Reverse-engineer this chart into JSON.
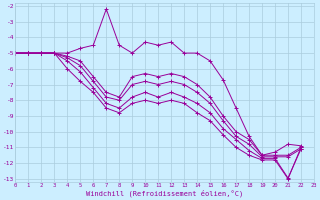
{
  "xlabel": "Windchill (Refroidissement éolien,°C)",
  "bg_color": "#cceeff",
  "grid_color": "#aaccdd",
  "line_color": "#990099",
  "xlim": [
    0,
    23
  ],
  "ylim": [
    -13,
    -2
  ],
  "yticks": [
    -13,
    -12,
    -11,
    -10,
    -9,
    -8,
    -7,
    -6,
    -5,
    -4,
    -3,
    -2
  ],
  "xticks": [
    0,
    1,
    2,
    3,
    4,
    5,
    6,
    7,
    8,
    9,
    10,
    11,
    12,
    13,
    14,
    15,
    16,
    17,
    18,
    19,
    20,
    21,
    22,
    23
  ],
  "series": [
    {
      "x": [
        0,
        1,
        2,
        3,
        4,
        5,
        6,
        7,
        8,
        9,
        10,
        11,
        12,
        13,
        14,
        15,
        16,
        17,
        18,
        19,
        20,
        21,
        22
      ],
      "y": [
        -5,
        -5,
        -5,
        -5,
        -5,
        -4.7,
        -4.5,
        -2.2,
        -4.5,
        -5.0,
        -4.3,
        -4.5,
        -4.3,
        -5.0,
        -5.0,
        -5.5,
        -6.7,
        -8.5,
        -10.3,
        -11.5,
        -11.3,
        -10.8,
        -10.9
      ]
    },
    {
      "x": [
        0,
        1,
        2,
        3,
        4,
        5,
        6,
        7,
        8,
        9,
        10,
        11,
        12,
        13,
        14,
        15,
        16,
        17,
        18,
        19,
        20,
        21,
        22
      ],
      "y": [
        -5,
        -5,
        -5,
        -5,
        -5.2,
        -5.5,
        -6.5,
        -7.5,
        -7.8,
        -6.5,
        -6.3,
        -6.5,
        -6.3,
        -6.5,
        -7.0,
        -7.8,
        -9.0,
        -10.0,
        -10.5,
        -11.5,
        -11.5,
        -11.5,
        -11.0
      ]
    },
    {
      "x": [
        0,
        1,
        2,
        3,
        4,
        5,
        6,
        7,
        8,
        9,
        10,
        11,
        12,
        13,
        14,
        15,
        16,
        17,
        18,
        19,
        20,
        21,
        22
      ],
      "y": [
        -5,
        -5,
        -5,
        -5,
        -5.3,
        -5.8,
        -6.8,
        -7.8,
        -8.0,
        -7.0,
        -6.8,
        -7.0,
        -6.8,
        -7.0,
        -7.5,
        -8.2,
        -9.3,
        -10.3,
        -10.8,
        -11.6,
        -11.6,
        -11.6,
        -11.1
      ]
    },
    {
      "x": [
        0,
        1,
        2,
        3,
        4,
        5,
        6,
        7,
        8,
        9,
        10,
        11,
        12,
        13,
        14,
        15,
        16,
        17,
        18,
        19,
        20,
        21,
        22
      ],
      "y": [
        -5,
        -5,
        -5,
        -5,
        -5.5,
        -6.2,
        -7.2,
        -8.2,
        -8.5,
        -7.8,
        -7.5,
        -7.8,
        -7.5,
        -7.8,
        -8.2,
        -8.8,
        -9.8,
        -10.5,
        -11.2,
        -11.7,
        -11.7,
        -12.95,
        -11.1
      ]
    },
    {
      "x": [
        0,
        1,
        2,
        3,
        4,
        5,
        6,
        7,
        8,
        9,
        10,
        11,
        12,
        13,
        14,
        15,
        16,
        17,
        18,
        19,
        20,
        21,
        22
      ],
      "y": [
        -5,
        -5,
        -5,
        -5,
        -6.0,
        -6.8,
        -7.5,
        -8.5,
        -8.8,
        -8.2,
        -8.0,
        -8.2,
        -8.0,
        -8.2,
        -8.8,
        -9.3,
        -10.2,
        -11.0,
        -11.5,
        -11.8,
        -11.8,
        -13.0,
        -11.0
      ]
    }
  ]
}
